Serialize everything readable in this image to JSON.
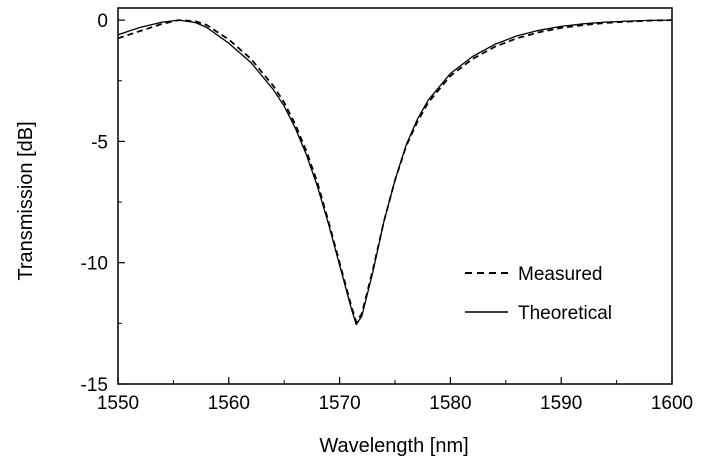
{
  "chart_data": {
    "type": "line",
    "title": "",
    "xlabel": "Wavelength [nm]",
    "ylabel": "Transmission [dB]",
    "xlim": [
      1550,
      1600
    ],
    "ylim": [
      -15,
      0.5
    ],
    "x_ticks": [
      1550,
      1560,
      1570,
      1580,
      1590,
      1600
    ],
    "y_ticks": [
      0,
      -5,
      -10,
      -15
    ],
    "grid": false,
    "legend_position": "lower-right",
    "series": [
      {
        "name": "Measured",
        "style": "dashed",
        "color": "#000000",
        "x": [
          1550,
          1552,
          1554,
          1555.5,
          1557,
          1558,
          1560,
          1562,
          1564,
          1565,
          1566,
          1567,
          1568,
          1569,
          1570,
          1571,
          1571.5,
          1572,
          1573,
          1574,
          1575,
          1576,
          1577,
          1578,
          1580,
          1582,
          1584,
          1586,
          1588,
          1590,
          1592,
          1594,
          1596,
          1598,
          1600
        ],
        "y": [
          -0.75,
          -0.45,
          -0.15,
          0,
          -0.05,
          -0.2,
          -0.8,
          -1.6,
          -2.7,
          -3.4,
          -4.3,
          -5.4,
          -6.7,
          -8.3,
          -10.0,
          -11.7,
          -12.45,
          -12.1,
          -10.3,
          -8.3,
          -6.6,
          -5.2,
          -4.2,
          -3.4,
          -2.3,
          -1.6,
          -1.1,
          -0.75,
          -0.5,
          -0.32,
          -0.2,
          -0.12,
          -0.06,
          -0.02,
          0
        ]
      },
      {
        "name": "Theoretical",
        "style": "solid",
        "color": "#000000",
        "x": [
          1550,
          1552,
          1554,
          1555.5,
          1557,
          1558,
          1560,
          1562,
          1564,
          1565,
          1566,
          1567,
          1568,
          1569,
          1570,
          1571,
          1571.5,
          1572,
          1573,
          1574,
          1575,
          1576,
          1577,
          1578,
          1580,
          1582,
          1584,
          1586,
          1588,
          1590,
          1592,
          1594,
          1596,
          1598,
          1600
        ],
        "y": [
          -0.6,
          -0.3,
          -0.08,
          0,
          -0.1,
          -0.3,
          -0.95,
          -1.75,
          -2.85,
          -3.55,
          -4.45,
          -5.55,
          -6.85,
          -8.4,
          -10.1,
          -11.8,
          -12.55,
          -12.2,
          -10.4,
          -8.3,
          -6.6,
          -5.15,
          -4.1,
          -3.3,
          -2.2,
          -1.5,
          -1.0,
          -0.65,
          -0.42,
          -0.26,
          -0.15,
          -0.08,
          -0.04,
          -0.01,
          0
        ]
      }
    ]
  }
}
